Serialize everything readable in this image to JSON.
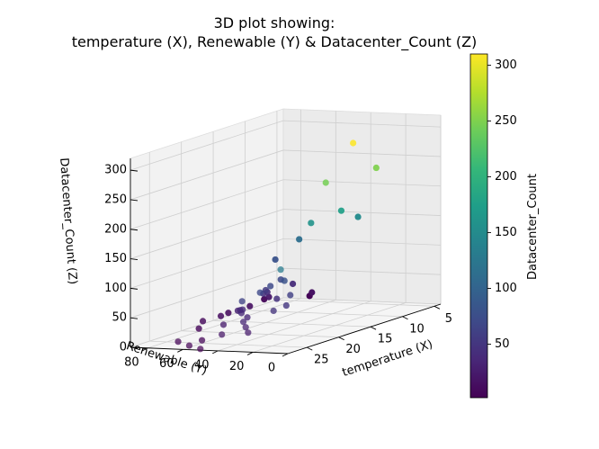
{
  "chart_data": {
    "type": "scatter",
    "projection": "3d",
    "title_line1": "3D plot showing:",
    "title_line2": "temperature (X), Renewable (Y) & Datacenter_Count (Z)",
    "xlabel": "temperature (X)",
    "ylabel": "Renewable (Y)",
    "zlabel": "Datacenter_Count (Z)",
    "colorbar_label": "Datacenter_Count",
    "colormap": "viridis",
    "colorbar_range": [
      2,
      310
    ],
    "colorbar_ticks": [
      50,
      100,
      150,
      200,
      250,
      300
    ],
    "x_ticks": [
      5,
      10,
      15,
      20,
      25
    ],
    "y_ticks": [
      0,
      20,
      40,
      60,
      80
    ],
    "z_ticks": [
      0,
      50,
      100,
      150,
      200,
      250,
      300
    ],
    "xlim": [
      4,
      28
    ],
    "ylim": [
      0,
      90
    ],
    "zlim": [
      0,
      320
    ],
    "grid": true,
    "points": [
      {
        "x": 15,
        "y": 10,
        "z": 310
      },
      {
        "x": 16,
        "y": 22,
        "z": 245
      },
      {
        "x": 10,
        "y": 15,
        "z": 250
      },
      {
        "x": 10,
        "y": 35,
        "z": 175
      },
      {
        "x": 12,
        "y": 45,
        "z": 160
      },
      {
        "x": 6,
        "y": 40,
        "z": 150
      },
      {
        "x": 25,
        "y": 15,
        "z": 130
      },
      {
        "x": 7,
        "y": 70,
        "z": 112
      },
      {
        "x": 8,
        "y": 80,
        "z": 80
      },
      {
        "x": 17,
        "y": 42,
        "z": 80
      },
      {
        "x": 14,
        "y": 55,
        "z": 70
      },
      {
        "x": 17,
        "y": 50,
        "z": 70
      },
      {
        "x": 20,
        "y": 45,
        "z": 70
      },
      {
        "x": 22,
        "y": 48,
        "z": 62
      },
      {
        "x": 15,
        "y": 60,
        "z": 55
      },
      {
        "x": 18,
        "y": 35,
        "z": 60
      },
      {
        "x": 20,
        "y": 30,
        "z": 50
      },
      {
        "x": 22,
        "y": 30,
        "z": 48
      },
      {
        "x": 12,
        "y": 70,
        "z": 40
      },
      {
        "x": 14,
        "y": 65,
        "z": 45
      },
      {
        "x": 16,
        "y": 50,
        "z": 45
      },
      {
        "x": 20,
        "y": 55,
        "z": 40
      },
      {
        "x": 21,
        "y": 52,
        "z": 38
      },
      {
        "x": 19,
        "y": 60,
        "z": 35
      },
      {
        "x": 22,
        "y": 45,
        "z": 35
      },
      {
        "x": 18,
        "y": 65,
        "z": 30
      },
      {
        "x": 24,
        "y": 40,
        "z": 35
      },
      {
        "x": 25,
        "y": 35,
        "z": 30
      },
      {
        "x": 23,
        "y": 55,
        "z": 25
      },
      {
        "x": 26,
        "y": 45,
        "z": 20
      },
      {
        "x": 8,
        "y": 70,
        "z": 40
      },
      {
        "x": 9,
        "y": 80,
        "z": 20
      },
      {
        "x": 12,
        "y": 80,
        "z": 15
      },
      {
        "x": 14,
        "y": 85,
        "z": 10
      },
      {
        "x": 26,
        "y": 30,
        "z": 25
      },
      {
        "x": 7,
        "y": 90,
        "z": 8
      },
      {
        "x": 5,
        "y": 70,
        "z": 15
      },
      {
        "x": 4,
        "y": 75,
        "z": 5
      },
      {
        "x": 25,
        "y": 60,
        "z": 5
      },
      {
        "x": 26,
        "y": 70,
        "z": 5
      },
      {
        "x": 28,
        "y": 50,
        "z": 2
      },
      {
        "x": 27,
        "y": 60,
        "z": 3
      },
      {
        "x": 20,
        "y": 80,
        "z": 5
      },
      {
        "x": 18,
        "y": 85,
        "z": 10
      },
      {
        "x": 16,
        "y": 82,
        "z": 12
      }
    ]
  }
}
